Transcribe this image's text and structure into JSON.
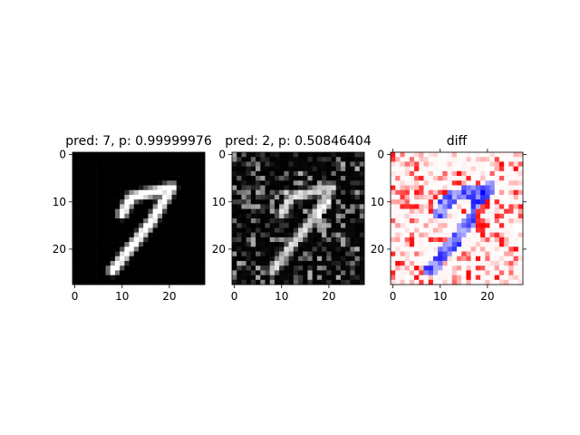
{
  "chart_data": [
    {
      "type": "heatmap",
      "title": "pred: 7, p: 0.99999976",
      "colormap": "gray",
      "xlim": [
        -0.5,
        27.5
      ],
      "ylim": [
        27.5,
        -0.5
      ],
      "xticks": [
        "0",
        "10",
        "20"
      ],
      "yticks": [
        "0",
        "10",
        "20"
      ],
      "content": "handwritten digit 7 (original input)"
    },
    {
      "type": "heatmap",
      "title": "pred: 2, p: 0.50846404",
      "colormap": "gray",
      "xlim": [
        -0.5,
        27.5
      ],
      "ylim": [
        27.5,
        -0.5
      ],
      "xticks": [
        "0",
        "10",
        "20"
      ],
      "yticks": [
        "0",
        "10",
        "20"
      ],
      "content": "adversarially perturbed digit 7"
    },
    {
      "type": "heatmap",
      "title": "diff",
      "colormap": "bwr",
      "xlim": [
        -0.5,
        27.5
      ],
      "ylim": [
        27.5,
        -0.5
      ],
      "xticks": [
        "0",
        "10",
        "20"
      ],
      "yticks": [
        "0",
        "10",
        "20"
      ],
      "content": "difference between perturbed and original"
    }
  ]
}
